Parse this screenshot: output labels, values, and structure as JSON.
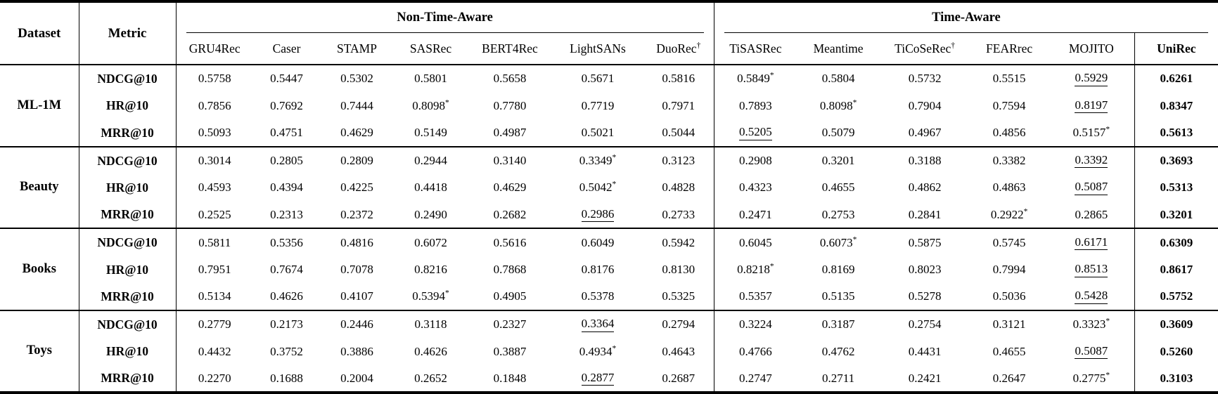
{
  "table": {
    "corner_headers": {
      "dataset": "Dataset",
      "metric": "Metric"
    },
    "col_groups": [
      {
        "label": "Non-Time-Aware",
        "span": 7
      },
      {
        "label": "Time-Aware",
        "span": 6
      }
    ],
    "model_headers": [
      {
        "label": "GRU4Rec",
        "sup": ""
      },
      {
        "label": "Caser",
        "sup": ""
      },
      {
        "label": "STAMP",
        "sup": ""
      },
      {
        "label": "SASRec",
        "sup": ""
      },
      {
        "label": "BERT4Rec",
        "sup": ""
      },
      {
        "label": "LightSANs",
        "sup": ""
      },
      {
        "label": "DuoRec",
        "sup": "†"
      },
      {
        "label": "TiSASRec",
        "sup": ""
      },
      {
        "label": "Meantime",
        "sup": ""
      },
      {
        "label": "TiCoSeRec",
        "sup": "†"
      },
      {
        "label": "FEARrec",
        "sup": ""
      },
      {
        "label": "MOJITO",
        "sup": ""
      },
      {
        "label": "UniRec",
        "sup": ""
      }
    ],
    "value_markers": {
      "underline_prefix": "_",
      "significance_suffix": "*"
    },
    "groups": [
      {
        "dataset": "ML-1M",
        "rows": [
          {
            "metric": "NDCG@10",
            "values": [
              "0.5758",
              "0.5447",
              "0.5302",
              "0.5801",
              "0.5658",
              "0.5671",
              "0.5816",
              "0.5849*",
              "0.5804",
              "0.5732",
              "0.5515",
              "_0.5929",
              "0.6261"
            ]
          },
          {
            "metric": "HR@10",
            "values": [
              "0.7856",
              "0.7692",
              "0.7444",
              "0.8098*",
              "0.7780",
              "0.7719",
              "0.7971",
              "0.7893",
              "0.8098*",
              "0.7904",
              "0.7594",
              "_0.8197",
              "0.8347"
            ]
          },
          {
            "metric": "MRR@10",
            "values": [
              "0.5093",
              "0.4751",
              "0.4629",
              "0.5149",
              "0.4987",
              "0.5021",
              "0.5044",
              "_0.5205",
              "0.5079",
              "0.4967",
              "0.4856",
              "0.5157*",
              "0.5613"
            ]
          }
        ]
      },
      {
        "dataset": "Beauty",
        "rows": [
          {
            "metric": "NDCG@10",
            "values": [
              "0.3014",
              "0.2805",
              "0.2809",
              "0.2944",
              "0.3140",
              "0.3349*",
              "0.3123",
              "0.2908",
              "0.3201",
              "0.3188",
              "0.3382",
              "_0.3392",
              "0.3693"
            ]
          },
          {
            "metric": "HR@10",
            "values": [
              "0.4593",
              "0.4394",
              "0.4225",
              "0.4418",
              "0.4629",
              "0.5042*",
              "0.4828",
              "0.4323",
              "0.4655",
              "0.4862",
              "0.4863",
              "_0.5087",
              "0.5313"
            ]
          },
          {
            "metric": "MRR@10",
            "values": [
              "0.2525",
              "0.2313",
              "0.2372",
              "0.2490",
              "0.2682",
              "_0.2986",
              "0.2733",
              "0.2471",
              "0.2753",
              "0.2841",
              "0.2922*",
              "0.2865",
              "0.3201"
            ]
          }
        ]
      },
      {
        "dataset": "Books",
        "rows": [
          {
            "metric": "NDCG@10",
            "values": [
              "0.5811",
              "0.5356",
              "0.4816",
              "0.6072",
              "0.5616",
              "0.6049",
              "0.5942",
              "0.6045",
              "0.6073*",
              "0.5875",
              "0.5745",
              "_0.6171",
              "0.6309"
            ]
          },
          {
            "metric": "HR@10",
            "values": [
              "0.7951",
              "0.7674",
              "0.7078",
              "0.8216",
              "0.7868",
              "0.8176",
              "0.8130",
              "0.8218*",
              "0.8169",
              "0.8023",
              "0.7994",
              "_0.8513",
              "0.8617"
            ]
          },
          {
            "metric": "MRR@10",
            "values": [
              "0.5134",
              "0.4626",
              "0.4107",
              "0.5394*",
              "0.4905",
              "0.5378",
              "0.5325",
              "0.5357",
              "0.5135",
              "0.5278",
              "0.5036",
              "_0.5428",
              "0.5752"
            ]
          }
        ]
      },
      {
        "dataset": "Toys",
        "rows": [
          {
            "metric": "NDCG@10",
            "values": [
              "0.2779",
              "0.2173",
              "0.2446",
              "0.3118",
              "0.2327",
              "_0.3364",
              "0.2794",
              "0.3224",
              "0.3187",
              "0.2754",
              "0.3121",
              "0.3323*",
              "0.3609"
            ]
          },
          {
            "metric": "HR@10",
            "values": [
              "0.4432",
              "0.3752",
              "0.3886",
              "0.4626",
              "0.3887",
              "0.4934*",
              "0.4643",
              "0.4766",
              "0.4762",
              "0.4431",
              "0.4655",
              "_0.5087",
              "0.5260"
            ]
          },
          {
            "metric": "MRR@10",
            "values": [
              "0.2270",
              "0.1688",
              "0.2004",
              "0.2652",
              "0.1848",
              "_0.2877",
              "0.2687",
              "0.2747",
              "0.2711",
              "0.2421",
              "0.2647",
              "0.2775*",
              "0.3103"
            ]
          }
        ]
      }
    ]
  }
}
